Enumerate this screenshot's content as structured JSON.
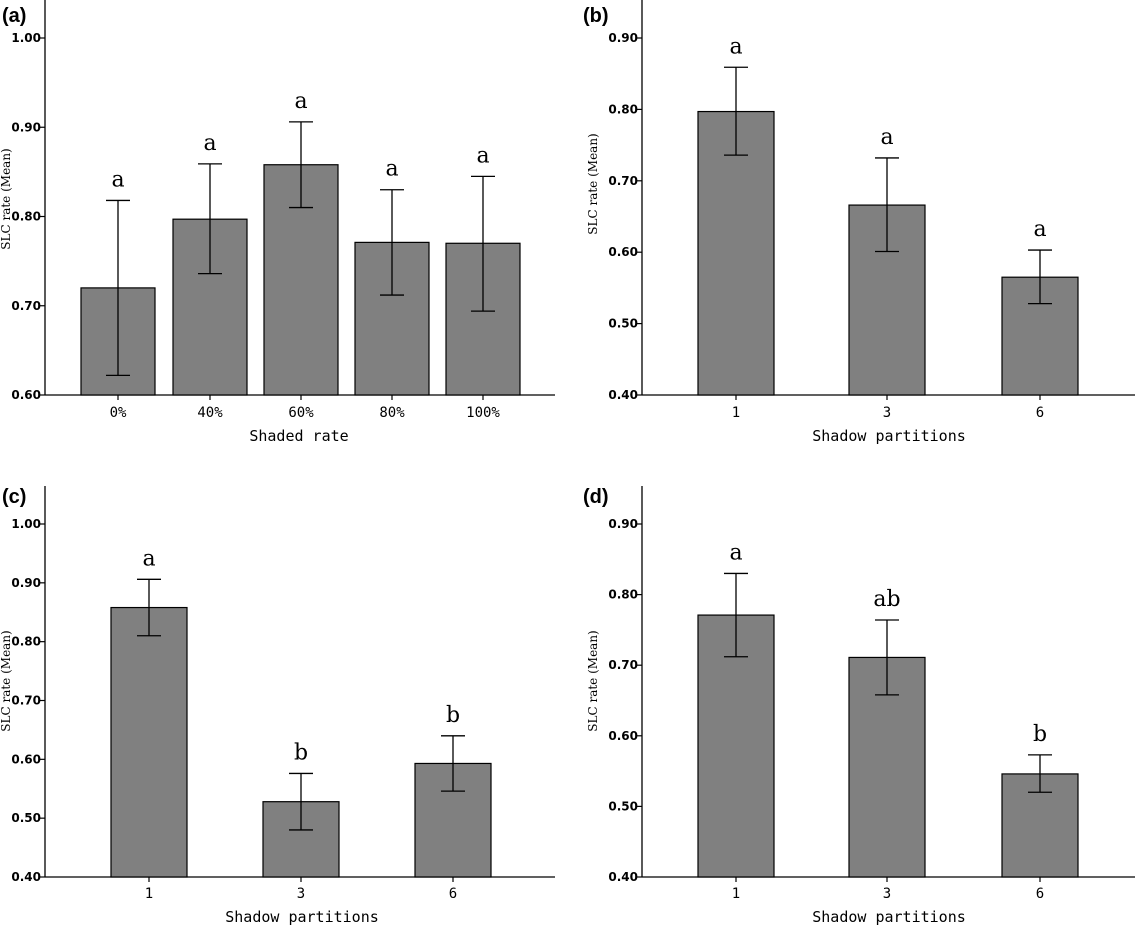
{
  "chart_data": [
    {
      "panel": "(a)",
      "type": "bar",
      "xlabel": "Shaded rate",
      "ylabel": "SLC rate (Mean)",
      "ylim": [
        0.6,
        1.0
      ],
      "yticks": [
        "0.60",
        "0.70",
        "0.80",
        "0.90",
        "1.00"
      ],
      "categories": [
        "0%",
        "40%",
        "60%",
        "80%",
        "100%"
      ],
      "values": [
        0.72,
        0.797,
        0.858,
        0.771,
        0.77
      ],
      "error_low": [
        0.622,
        0.736,
        0.81,
        0.712,
        0.694
      ],
      "error_high": [
        0.818,
        0.859,
        0.906,
        0.83,
        0.845
      ],
      "significance": [
        "a",
        "a",
        "a",
        "a",
        "a"
      ],
      "bar_color": "#808080"
    },
    {
      "panel": "(b)",
      "type": "bar",
      "xlabel": "Shadow partitions",
      "ylabel": "SLC rate (Mean)",
      "ylim": [
        0.4,
        0.9
      ],
      "yticks": [
        "0.40",
        "0.50",
        "0.60",
        "0.70",
        "0.80",
        "0.90"
      ],
      "categories": [
        "1",
        "3",
        "6"
      ],
      "values": [
        0.797,
        0.666,
        0.565
      ],
      "error_low": [
        0.736,
        0.601,
        0.528
      ],
      "error_high": [
        0.859,
        0.732,
        0.603
      ],
      "significance": [
        "a",
        "a",
        "a"
      ],
      "bar_color": "#808080"
    },
    {
      "panel": "(c)",
      "type": "bar",
      "xlabel": "Shadow partitions",
      "ylabel": "SLC rate (Mean)",
      "ylim": [
        0.4,
        1.0
      ],
      "yticks": [
        "0.40",
        "0.50",
        "0.60",
        "0.70",
        "0.80",
        "0.90",
        "1.00"
      ],
      "categories": [
        "1",
        "3",
        "6"
      ],
      "values": [
        0.858,
        0.528,
        0.593
      ],
      "error_low": [
        0.81,
        0.48,
        0.546
      ],
      "error_high": [
        0.906,
        0.576,
        0.64
      ],
      "significance": [
        "a",
        "b",
        "b"
      ],
      "bar_color": "#808080"
    },
    {
      "panel": "(d)",
      "type": "bar",
      "xlabel": "Shadow partitions",
      "ylabel": "SLC rate (Mean)",
      "ylim": [
        0.4,
        0.9
      ],
      "yticks": [
        "0.40",
        "0.50",
        "0.60",
        "0.70",
        "0.80",
        "0.90"
      ],
      "categories": [
        "1",
        "3",
        "6"
      ],
      "values": [
        0.771,
        0.711,
        0.546
      ],
      "error_low": [
        0.712,
        0.658,
        0.52
      ],
      "error_high": [
        0.83,
        0.764,
        0.573
      ],
      "significance": [
        "a",
        "ab",
        "b"
      ],
      "bar_color": "#808080"
    }
  ]
}
